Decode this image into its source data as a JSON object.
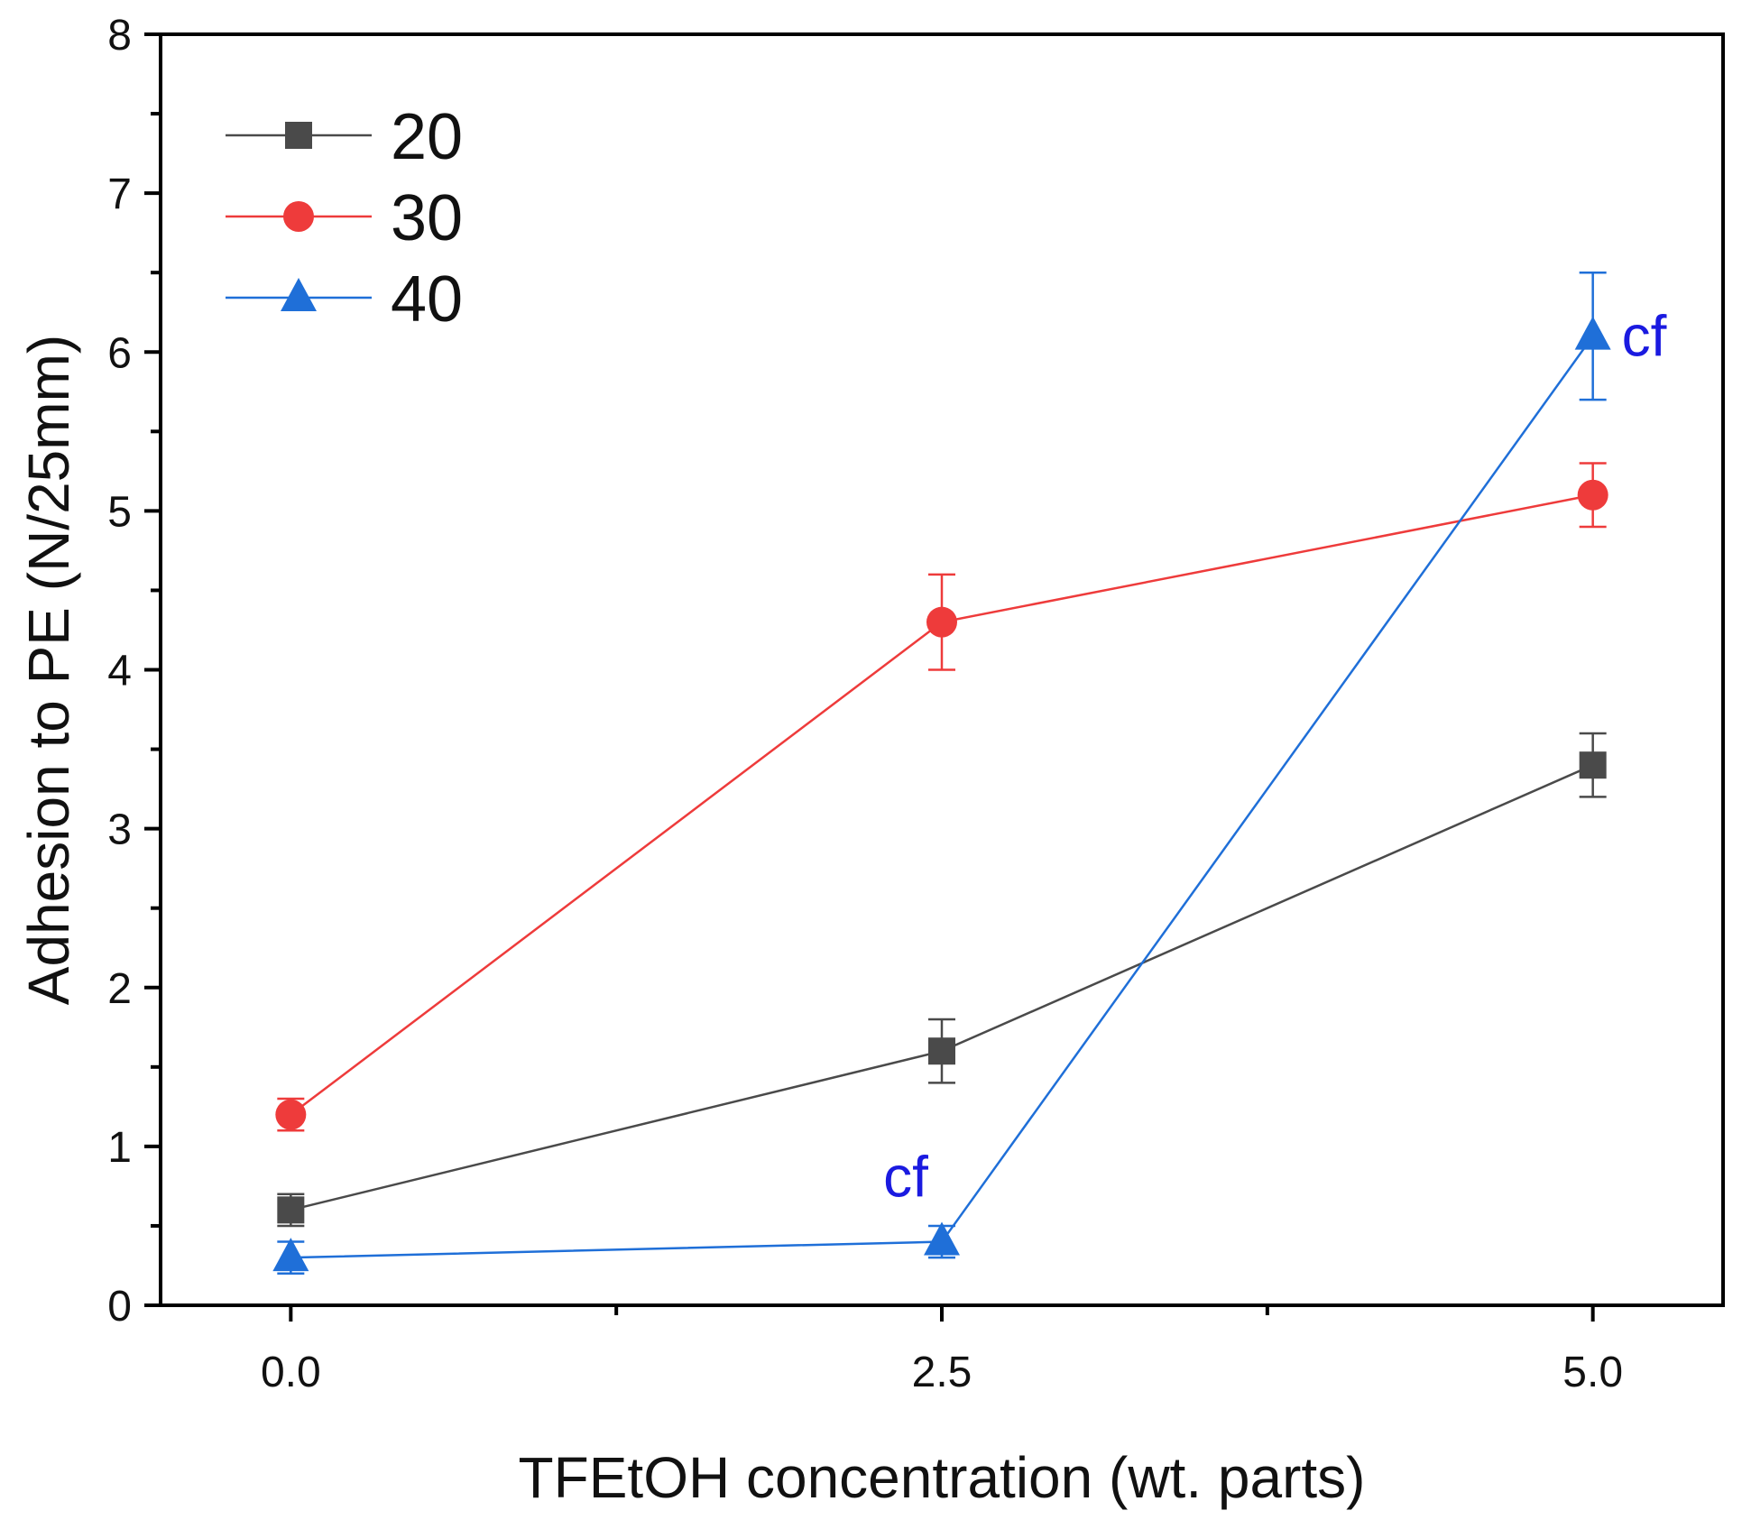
{
  "chart_data": {
    "type": "line",
    "title": "",
    "xlabel": "TFEtOH concentration (wt. parts)",
    "ylabel": "Adhesion to PE (N/25mm)",
    "xlim": [
      -0.5,
      5.5
    ],
    "ylim": [
      0,
      8
    ],
    "x_ticks": [
      0.0,
      2.5,
      5.0
    ],
    "x_tick_labels": [
      "0.0",
      "2.5",
      "5.0"
    ],
    "x_minor_ticks": [
      1.25,
      3.75
    ],
    "y_ticks": [
      0,
      1,
      2,
      3,
      4,
      5,
      6,
      7,
      8
    ],
    "y_tick_labels": [
      "0",
      "1",
      "2",
      "3",
      "4",
      "5",
      "6",
      "7",
      "8"
    ],
    "y_minor_ticks": [
      0.5,
      1.5,
      2.5,
      3.5,
      4.5,
      5.5,
      6.5,
      7.5
    ],
    "grid": false,
    "legend_position": "top-left",
    "x": [
      0.0,
      2.5,
      5.0
    ],
    "series": [
      {
        "name": "20",
        "values": [
          0.6,
          1.6,
          3.4
        ],
        "errors": [
          0.1,
          0.2,
          0.2
        ],
        "color": "#4a4a4a",
        "marker": "square"
      },
      {
        "name": "30",
        "values": [
          1.2,
          4.3,
          5.1
        ],
        "errors": [
          0.1,
          0.3,
          0.2
        ],
        "color": "#ee3b3b",
        "marker": "circle"
      },
      {
        "name": "40",
        "values": [
          0.3,
          0.4,
          6.1
        ],
        "errors": [
          0.1,
          0.1,
          0.4
        ],
        "color": "#1f6fd8",
        "marker": "triangle"
      }
    ],
    "annotations": [
      {
        "text": "cf",
        "x": 2.5,
        "y": 0.4,
        "series": "40",
        "placement": "above"
      },
      {
        "text": "cf",
        "x": 5.0,
        "y": 6.1,
        "series": "40",
        "placement": "right"
      }
    ],
    "annotation_color": "#1a1ae0"
  }
}
